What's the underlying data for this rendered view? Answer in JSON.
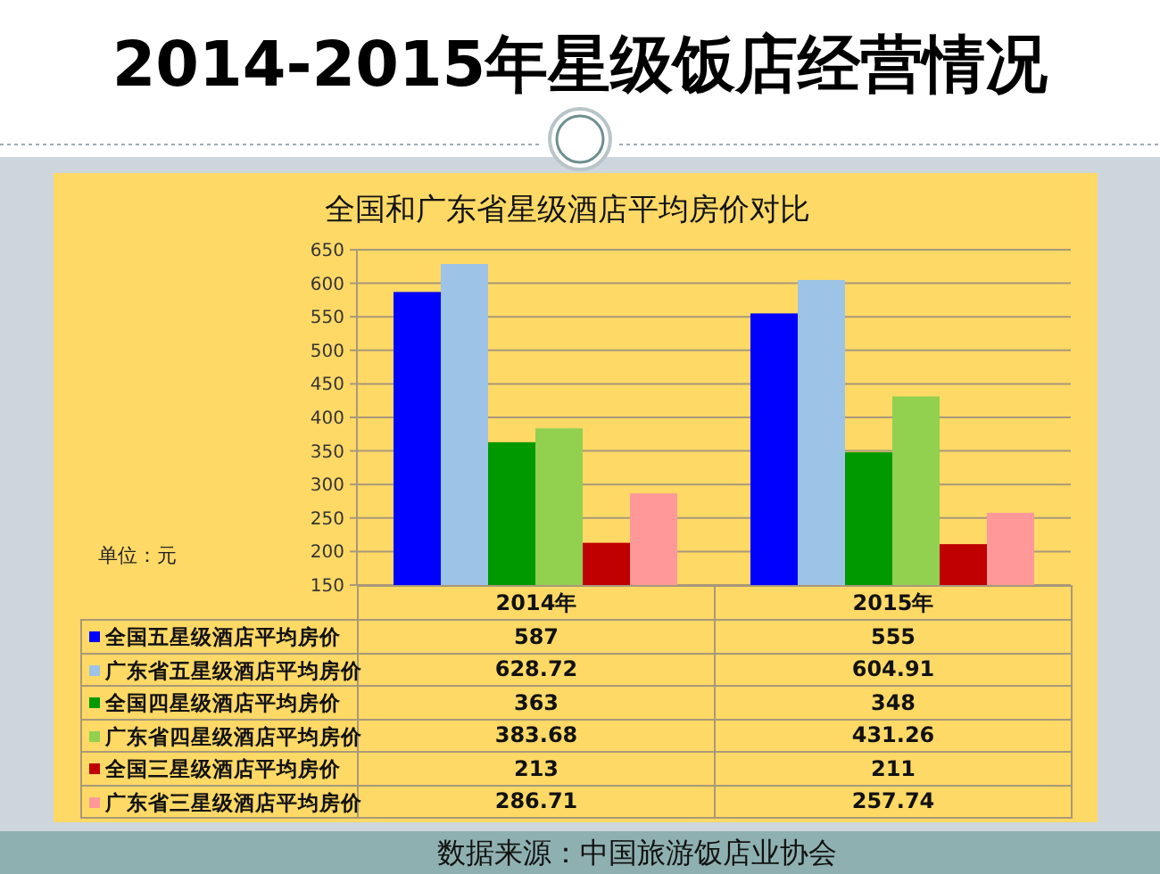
{
  "chart_data": {
    "type": "bar",
    "title": "2014-2015年星级饭店经营情况",
    "subtitle": "全国和广东省星级酒店平均房价对比",
    "categories": [
      "2014年",
      "2015年"
    ],
    "series": [
      {
        "name": "全国五星级酒店平均房价",
        "color": "#0000ff",
        "values": [
          587,
          555
        ]
      },
      {
        "name": "广东省五星级酒店平均房价",
        "color": "#9dc3e6",
        "values": [
          628.72,
          604.91
        ]
      },
      {
        "name": "全国四星级酒店平均房价",
        "color": "#009900",
        "values": [
          363,
          348
        ]
      },
      {
        "name": "广东省四星级酒店平均房价",
        "color": "#92d050",
        "values": [
          383.68,
          431.26
        ]
      },
      {
        "name": "全国三星级酒店平均房价",
        "color": "#c00000",
        "values": [
          213,
          211
        ]
      },
      {
        "name": "广东省三星级酒店平均房价",
        "color": "#ff9999",
        "values": [
          286.71,
          257.74
        ]
      }
    ],
    "ylim": [
      150,
      650
    ],
    "yticks": [
      150,
      200,
      250,
      300,
      350,
      400,
      450,
      500,
      550,
      600,
      650
    ],
    "grid": "y",
    "legend": "bottom",
    "data_labels": true,
    "annotations": [
      "单位：元",
      "数据来源：中国旅游饭店业协会"
    ]
  }
}
